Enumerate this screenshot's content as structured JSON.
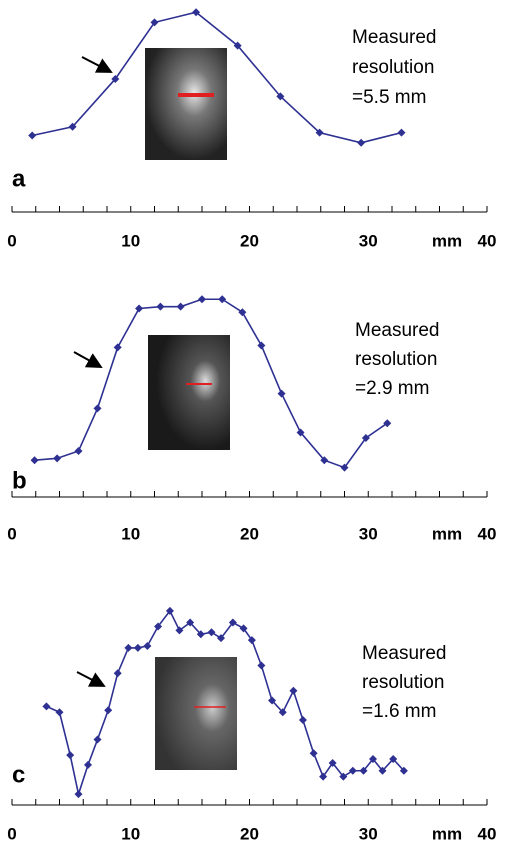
{
  "chart_data": [
    {
      "type": "line",
      "panel_label": "a",
      "annotation": [
        "Measured",
        "resolution",
        "=5.5 mm"
      ],
      "xlabel": "mm",
      "color": "#2e3192",
      "xlim": [
        0,
        40
      ],
      "xticks": [
        0,
        10,
        20,
        30,
        40
      ],
      "xminorticks": [
        2,
        4,
        6,
        8,
        12,
        14,
        16,
        18,
        22,
        24,
        26,
        28,
        32,
        34,
        36,
        38
      ],
      "ylim": [
        0,
        100
      ],
      "x": [
        1.7,
        5.1,
        8.7,
        12.0,
        15.5,
        19.0,
        22.6,
        25.9,
        29.4,
        32.8
      ],
      "values": [
        10,
        16,
        49,
        88,
        95,
        72,
        37,
        12,
        5,
        12
      ]
    },
    {
      "type": "line",
      "panel_label": "b",
      "annotation": [
        "Measured",
        "resolution",
        "=2.9 mm"
      ],
      "xlabel": "mm",
      "color": "#2e3192",
      "xlim": [
        0,
        40
      ],
      "xticks": [
        0,
        10,
        20,
        30,
        40
      ],
      "xminorticks": [
        2,
        4,
        6,
        8,
        12,
        14,
        16,
        18,
        22,
        24,
        26,
        28,
        32,
        34,
        36,
        38
      ],
      "ylim": [
        0,
        100
      ],
      "x": [
        1.9,
        3.8,
        5.6,
        7.2,
        8.9,
        10.7,
        12.5,
        14.2,
        16.0,
        17.7,
        19.4,
        21.0,
        22.7,
        24.3,
        26.3,
        28.0,
        29.8,
        31.6
      ],
      "values": [
        8,
        9,
        13,
        36,
        69,
        90,
        91,
        91,
        95,
        95,
        88,
        70,
        44,
        23,
        8,
        4,
        20,
        28
      ]
    },
    {
      "type": "line",
      "panel_label": "c",
      "annotation": [
        "Measured",
        "resolution",
        "=1.6 mm"
      ],
      "xlabel": "mm",
      "color": "#2e3192",
      "xlim": [
        0,
        40
      ],
      "xticks": [
        0,
        10,
        20,
        30,
        40
      ],
      "xminorticks": [
        2,
        4,
        6,
        8,
        12,
        14,
        16,
        18,
        22,
        24,
        26,
        28,
        32,
        34,
        36,
        38
      ],
      "ylim": [
        0,
        100
      ],
      "x": [
        2.9,
        4.0,
        4.9,
        5.6,
        6.4,
        7.2,
        8.1,
        8.9,
        9.8,
        10.6,
        11.4,
        12.3,
        13.3,
        14.1,
        15.0,
        15.9,
        16.8,
        17.6,
        18.6,
        19.5,
        20.2,
        21.0,
        21.9,
        22.8,
        23.7,
        24.5,
        25.4,
        26.2,
        27.0,
        27.9,
        28.7,
        29.6,
        30.4,
        31.2,
        32.1,
        33.0
      ],
      "values": [
        48,
        45,
        23,
        3,
        18,
        31,
        46,
        65,
        78,
        78,
        79,
        89,
        97,
        87,
        91,
        85,
        86,
        83,
        91,
        88,
        82,
        69,
        51,
        45,
        56,
        41,
        24,
        12,
        19,
        12,
        15,
        15,
        21,
        15,
        21,
        15
      ]
    }
  ]
}
